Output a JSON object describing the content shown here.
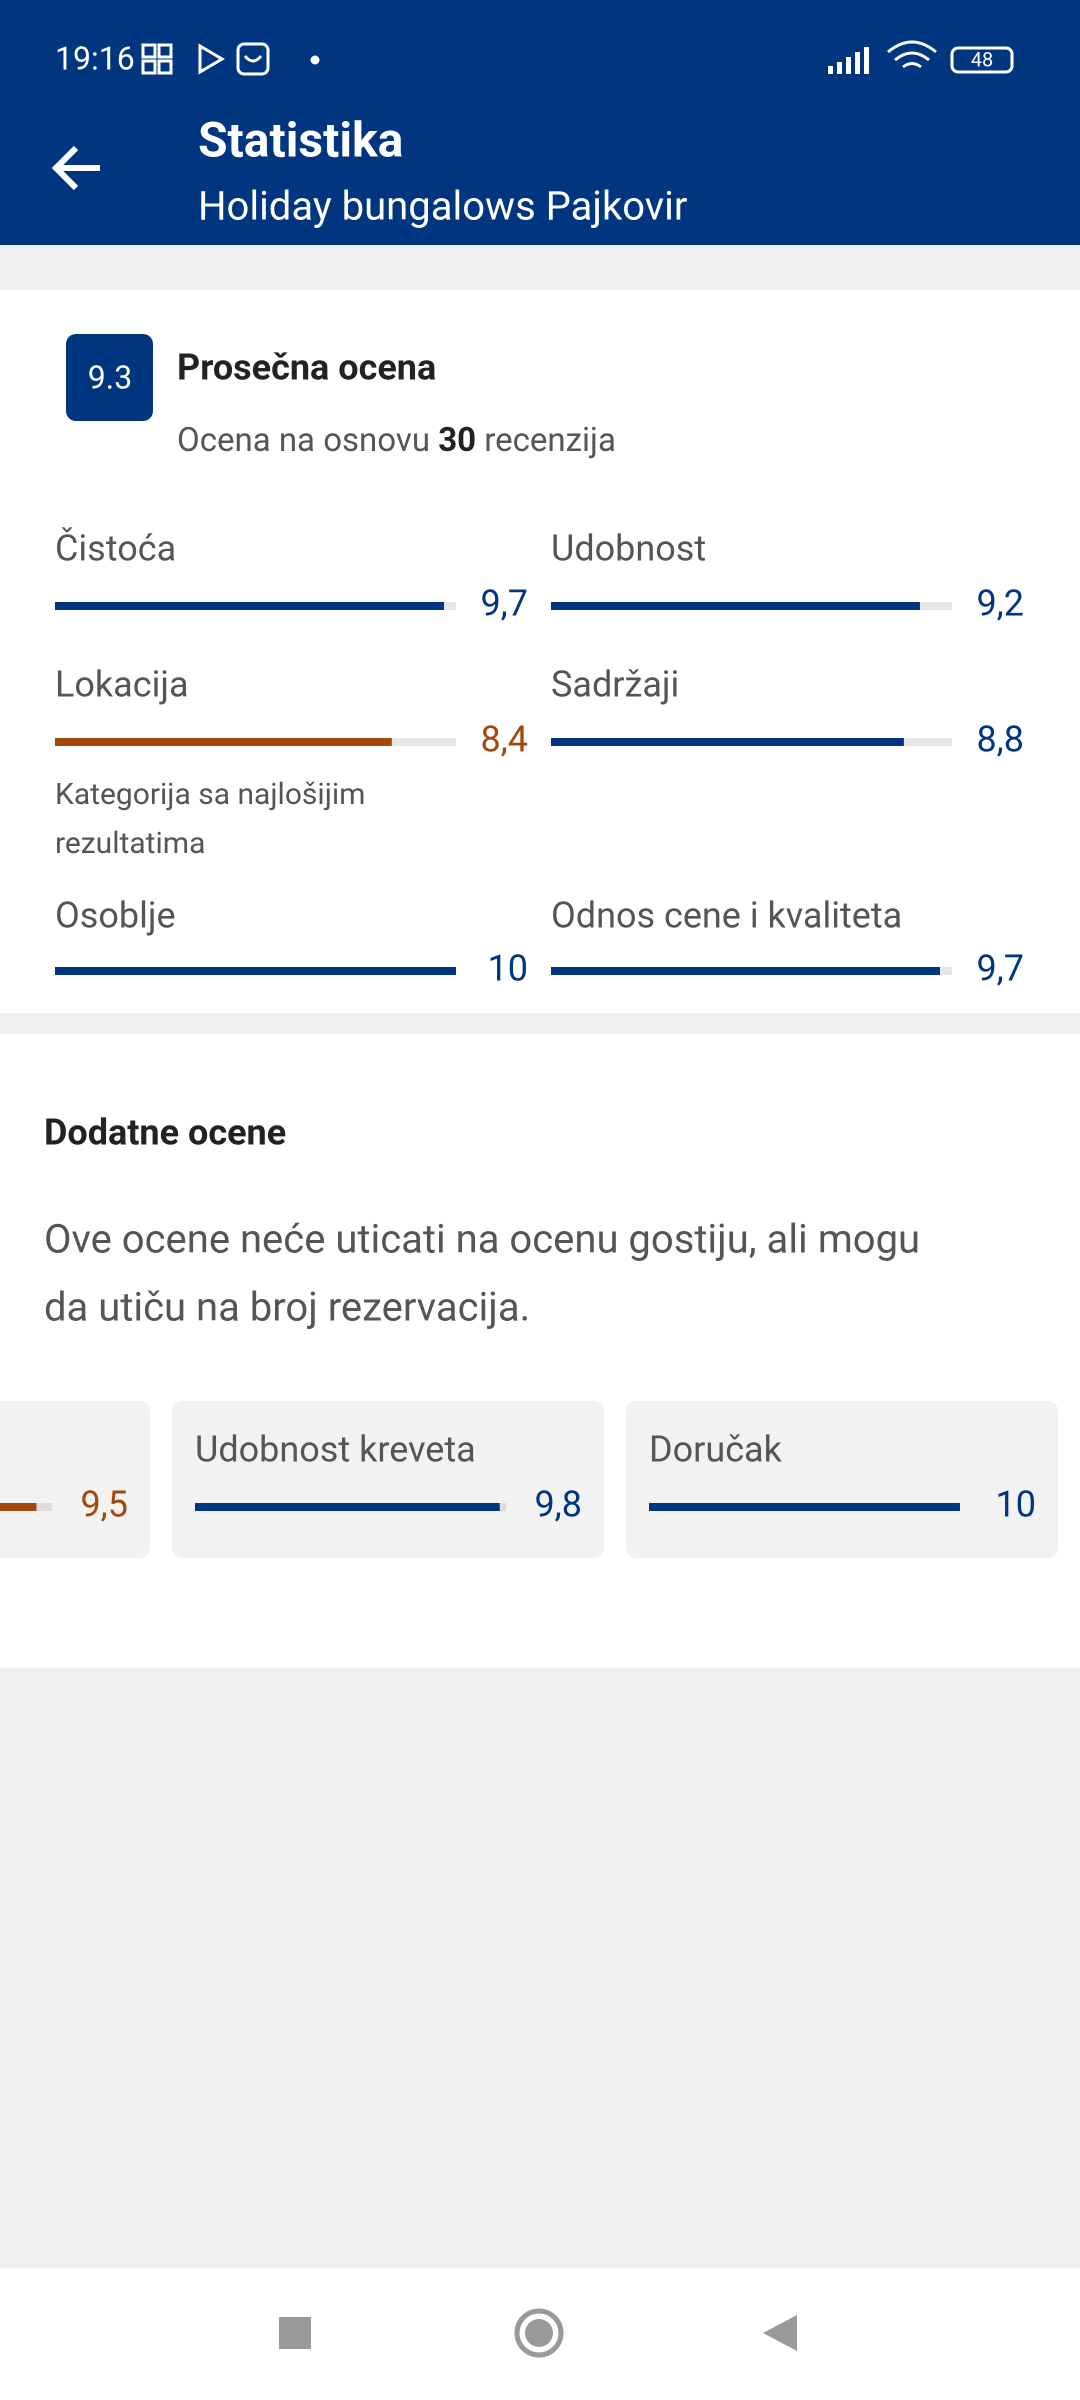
{
  "status_bar": {
    "time": "19:16",
    "battery": "48"
  },
  "header": {
    "title": "Statistika",
    "subtitle": "Holiday bungalows Pajkovir"
  },
  "summary": {
    "score": "9.3",
    "title": "Prosečna ocena",
    "subtitle_prefix": "Ocena na osnovu",
    "review_count": "30",
    "subtitle_suffix": "recenzija"
  },
  "categories": [
    {
      "name": "Čistoća",
      "score": 9.7,
      "score_label": "9,7",
      "color": "#003580"
    },
    {
      "name": "Udobnost",
      "score": 9.2,
      "score_label": "9,2",
      "color": "#003580"
    },
    {
      "name": "Lokacija",
      "score": 8.4,
      "score_label": "8,4",
      "color": "#a3480b",
      "note": [
        "Kategorija sa najlošijim",
        "rezultatima"
      ]
    },
    {
      "name": "Sadržaji",
      "score": 8.8,
      "score_label": "8,8",
      "color": "#003580"
    },
    {
      "name": "Osoblje",
      "score": 10,
      "color": "#003580"
    },
    {
      "name": "Odnos cene i kvaliteta",
      "score": 9.7,
      "score_label": "9,7",
      "color": "#003580"
    }
  ],
  "additional": {
    "title": "Dodatne ocene",
    "description": [
      "Ove ocene neće uticati na ocenu gostiju, ali mogu",
      "da utiču na broj rezervacija."
    ],
    "items": [
      {
        "name": null,
        "score": 9.5,
        "score_label": "9,5",
        "color": "#a3480b"
      },
      {
        "name": "Udobnost kreveta",
        "score": 9.8,
        "score_label": "9,8",
        "color": "#003580"
      },
      {
        "name": "Doručak",
        "score": 10,
        "color": "#003580"
      }
    ]
  },
  "scale_max": 10
}
